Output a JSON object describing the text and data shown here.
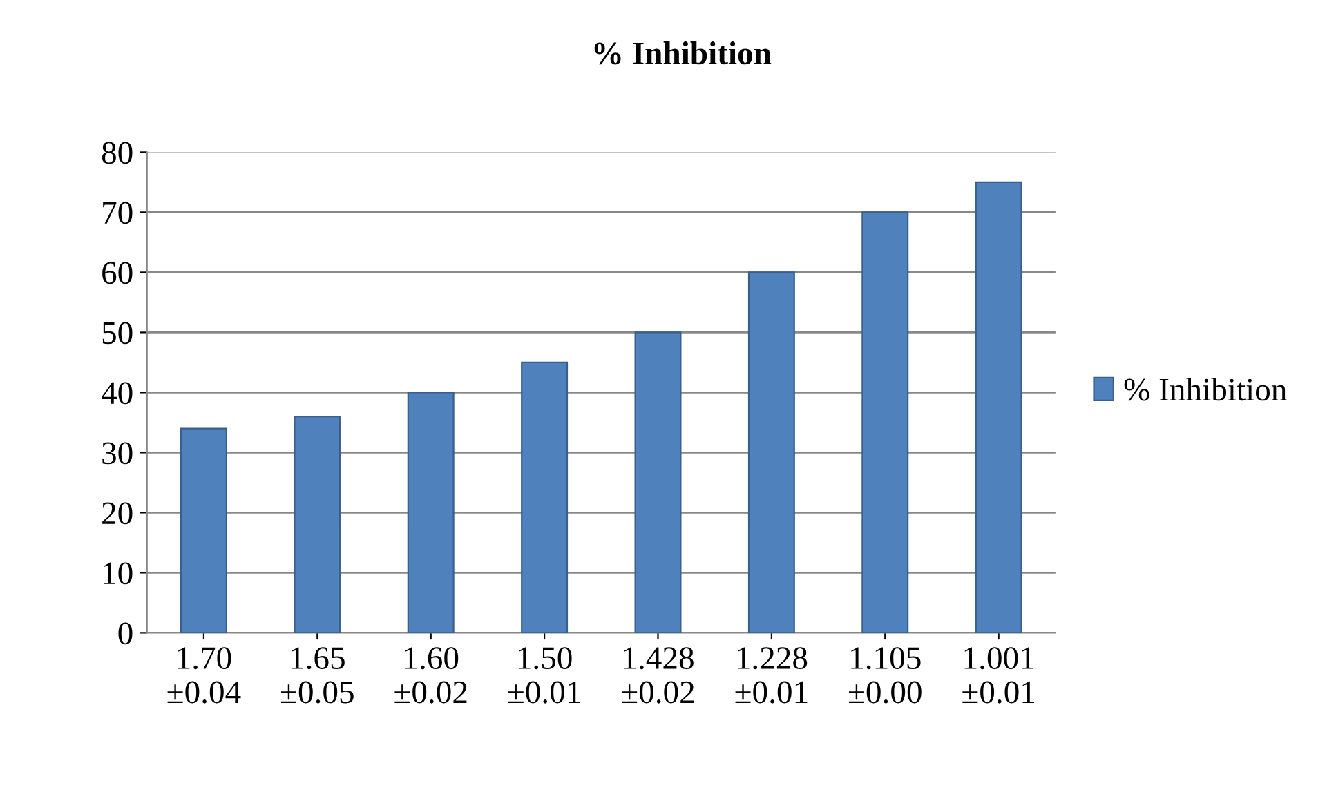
{
  "chart_data": {
    "type": "bar",
    "title": "% Inhibition",
    "categories": [
      "1.70\n±0.04",
      "1.65\n±0.05",
      "1.60\n±0.02",
      "1.50\n±0.01",
      "1.428\n±0.02",
      "1.228\n±0.01",
      "1.105\n±0.00",
      "1.001\n±0.01"
    ],
    "series": [
      {
        "name": "% Inhibition",
        "color": "#4f81bd",
        "values": [
          34,
          36,
          40,
          45,
          50,
          60,
          70,
          75
        ]
      }
    ],
    "ylim": [
      0,
      80
    ],
    "yticks": [
      0,
      10,
      20,
      30,
      40,
      50,
      60,
      70,
      80
    ],
    "grid": "y",
    "legend": "right"
  }
}
